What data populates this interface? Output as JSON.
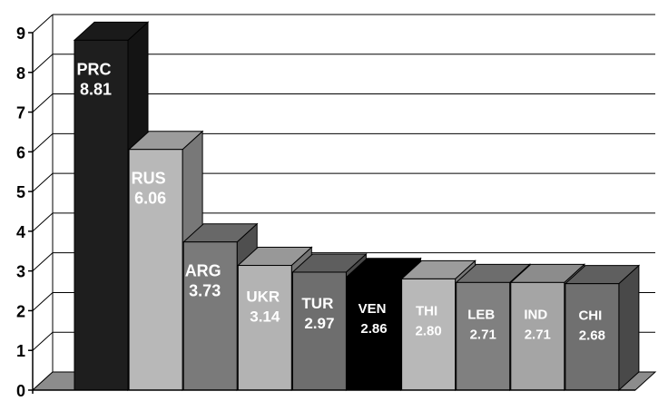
{
  "chart_data": {
    "type": "bar",
    "title": "",
    "xlabel": "",
    "ylabel": "",
    "ylim": [
      0,
      9
    ],
    "yticks": [
      "0",
      "1",
      "2",
      "3",
      "4",
      "5",
      "6",
      "7",
      "8",
      "9"
    ],
    "grid": true,
    "three_d": true,
    "categories": [
      "PRC",
      "RUS",
      "ARG",
      "UKR",
      "TUR",
      "VEN",
      "THI",
      "LEB",
      "IND",
      "CHI"
    ],
    "values": [
      8.81,
      6.06,
      3.73,
      3.14,
      2.97,
      2.86,
      2.8,
      2.71,
      2.71,
      2.68
    ],
    "value_labels": [
      "8.81",
      "6.06",
      "3.73",
      "3.14",
      "2.97",
      "2.86",
      "2.80",
      "2.71",
      "2.71",
      "2.68"
    ],
    "colors": [
      "#1e1e1e",
      "#b8b8b8",
      "#7a7a7a",
      "#b3b3b3",
      "#6e6e6e",
      "#000000",
      "#b8b8b8",
      "#808080",
      "#a5a5a5",
      "#707070"
    ]
  }
}
